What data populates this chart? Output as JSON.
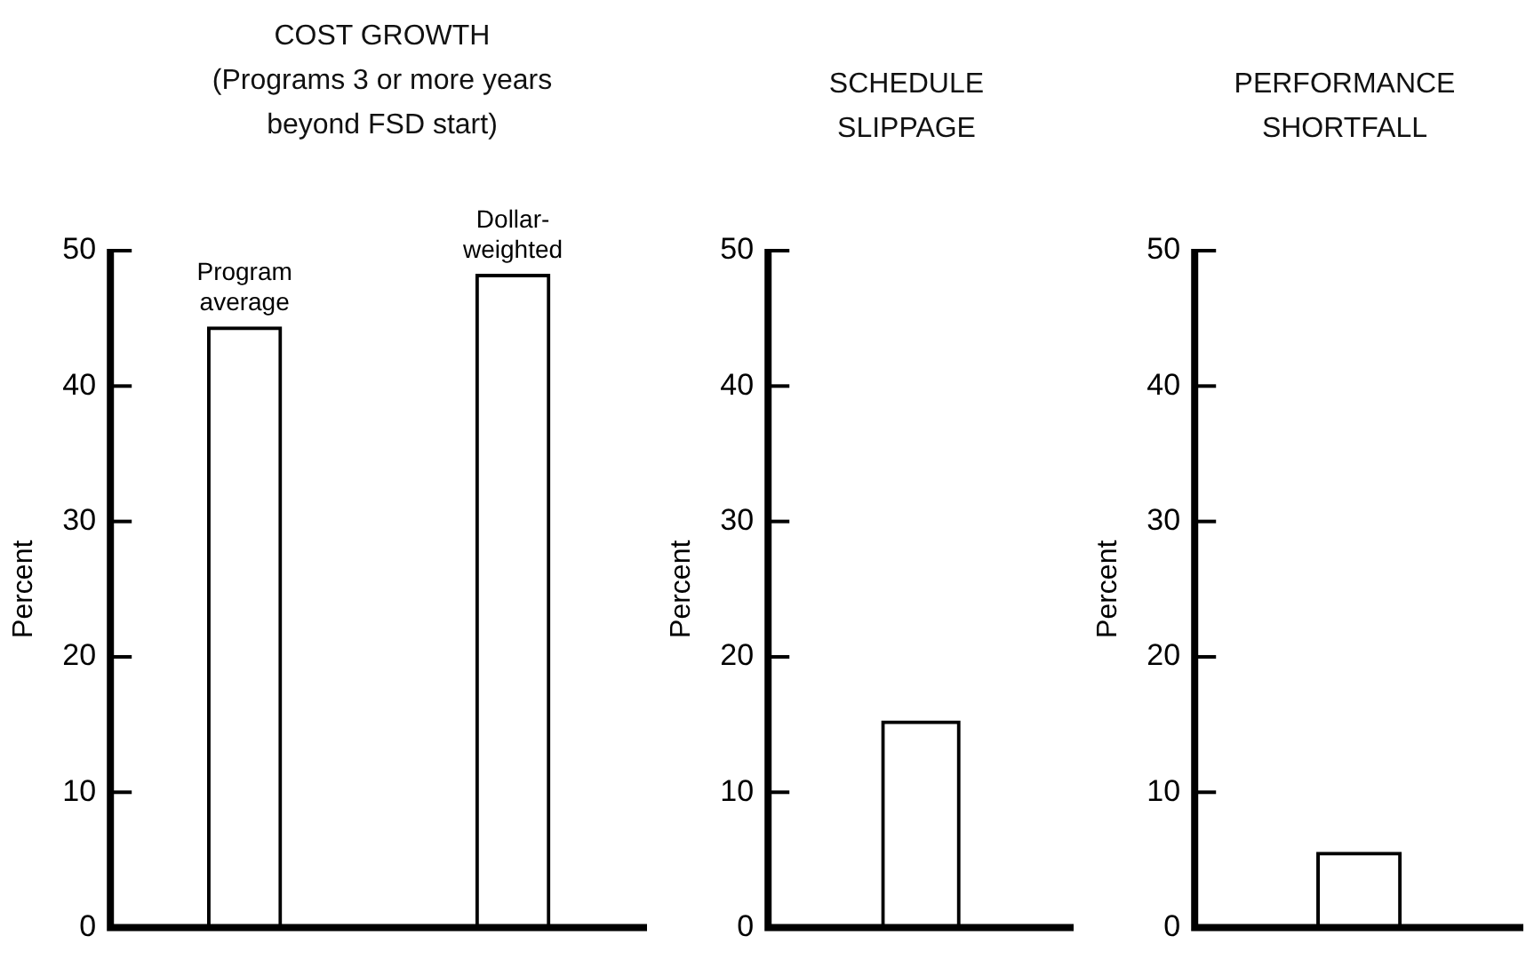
{
  "chart_data": [
    {
      "type": "bar",
      "title": "COST GROWTH",
      "subtitle": "(Programs 3 or more years beyond FSD start)",
      "ylabel": "Percent",
      "categories": [
        "Program average",
        "Dollar-weighted"
      ],
      "values": [
        44.4,
        48.3
      ],
      "color": "#000000",
      "ylim": [
        0,
        50
      ],
      "yticks": [
        0,
        10,
        20,
        30,
        40,
        50
      ],
      "grid": false,
      "legend": false
    },
    {
      "type": "bar",
      "title": "SCHEDULE SLIPPAGE",
      "ylabel": "Percent",
      "categories": [
        null
      ],
      "values": [
        15.3
      ],
      "color": "#000000",
      "ylim": [
        0,
        50
      ],
      "yticks": [
        0,
        10,
        20,
        30,
        40,
        50
      ],
      "grid": false,
      "legend": false
    },
    {
      "type": "bar",
      "title": "PERFORMANCE SHORTFALL",
      "ylabel": "Percent",
      "categories": [
        null
      ],
      "values": [
        5.6
      ],
      "color": "#000000",
      "ylim": [
        0,
        50
      ],
      "yticks": [
        0,
        10,
        20,
        30,
        40,
        50
      ],
      "grid": false,
      "legend": false
    }
  ]
}
